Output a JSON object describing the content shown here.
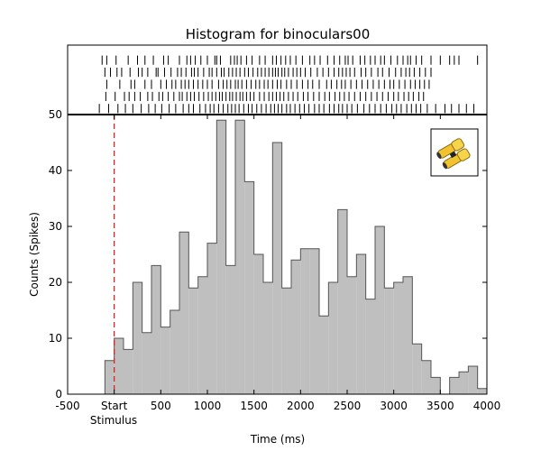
{
  "chart_data": {
    "type": "histogram",
    "title": "Histogram for binoculars00",
    "xlabel": "Time (ms)",
    "ylabel": "Counts (Spikes)",
    "xlim": [
      -500,
      4000
    ],
    "ylim": [
      0,
      50
    ],
    "x_ticks": [
      -500,
      0,
      500,
      1000,
      1500,
      2000,
      2500,
      3000,
      3500,
      4000
    ],
    "x_tick_labels": [
      "-500",
      "Start",
      "500",
      "1000",
      "1500",
      "2000",
      "2500",
      "3000",
      "3500",
      "4000"
    ],
    "x_tick_sublabel": "Stimulus",
    "y_ticks": [
      0,
      10,
      20,
      30,
      40,
      50
    ],
    "stimulus_onset": 0,
    "stimulus_line_color": "#d62728",
    "bar_fill_color": "#bfbfbf",
    "bar_edge_color": "#555555",
    "bin_width": 100,
    "bin_starts": [
      -100,
      0,
      100,
      200,
      300,
      400,
      500,
      600,
      700,
      800,
      900,
      1000,
      1100,
      1200,
      1300,
      1400,
      1500,
      1600,
      1700,
      1800,
      1900,
      2000,
      2100,
      2200,
      2300,
      2400,
      2500,
      2600,
      2700,
      2800,
      2900,
      3000,
      3100,
      3200,
      3300,
      3400,
      3500,
      3600,
      3700,
      3800,
      3900
    ],
    "counts": [
      6,
      10,
      8,
      20,
      11,
      23,
      12,
      15,
      29,
      19,
      21,
      27,
      49,
      23,
      49,
      38,
      25,
      20,
      45,
      19,
      24,
      26,
      26,
      14,
      20,
      33,
      21,
      25,
      17,
      30,
      19,
      20,
      21,
      9,
      6,
      3,
      0,
      3,
      4,
      5,
      1
    ],
    "raster": {
      "trials": 5,
      "spike_times_ms": [
        [
          -130,
          -80,
          20,
          150,
          250,
          330,
          420,
          530,
          580,
          700,
          780,
          820,
          870,
          930,
          1000,
          1080,
          1100,
          1140,
          1250,
          1290,
          1320,
          1360,
          1420,
          1480,
          1560,
          1620,
          1700,
          1740,
          1790,
          1840,
          1890,
          1950,
          2020,
          2100,
          2150,
          2210,
          2290,
          2360,
          2420,
          2480,
          2510,
          2560,
          2640,
          2690,
          2750,
          2800,
          2860,
          2900,
          2970,
          3040,
          3100,
          3150,
          3180,
          3240,
          3300,
          3400,
          3500,
          3600,
          3650,
          3700,
          3900
        ],
        [
          -100,
          -40,
          30,
          80,
          170,
          260,
          300,
          360,
          450,
          470,
          540,
          610,
          680,
          720,
          770,
          830,
          860,
          900,
          960,
          1020,
          1050,
          1100,
          1150,
          1180,
          1230,
          1270,
          1310,
          1350,
          1400,
          1440,
          1490,
          1540,
          1580,
          1620,
          1660,
          1700,
          1730,
          1760,
          1800,
          1830,
          1870,
          1920,
          1960,
          2000,
          2050,
          2110,
          2180,
          2240,
          2300,
          2360,
          2410,
          2450,
          2490,
          2530,
          2580,
          2650,
          2700,
          2760,
          2830,
          2880,
          2950,
          3020,
          3080,
          3130,
          3170,
          3220,
          3280,
          3340,
          3400
        ],
        [
          -80,
          60,
          180,
          220,
          330,
          400,
          500,
          560,
          620,
          660,
          720,
          760,
          800,
          850,
          900,
          950,
          1000,
          1050,
          1120,
          1170,
          1210,
          1250,
          1300,
          1330,
          1370,
          1420,
          1470,
          1520,
          1560,
          1610,
          1650,
          1700,
          1750,
          1790,
          1850,
          1900,
          1960,
          2020,
          2080,
          2130,
          2200,
          2280,
          2330,
          2390,
          2440,
          2480,
          2540,
          2600,
          2660,
          2720,
          2780,
          2840,
          2900,
          2960,
          3000,
          3060,
          3120,
          3180,
          3230,
          3280,
          3330,
          3380
        ],
        [
          -90,
          10,
          110,
          160,
          220,
          280,
          360,
          410,
          480,
          520,
          580,
          640,
          700,
          730,
          780,
          820,
          860,
          910,
          960,
          1010,
          1050,
          1090,
          1130,
          1160,
          1200,
          1240,
          1270,
          1310,
          1350,
          1380,
          1420,
          1460,
          1500,
          1560,
          1610,
          1660,
          1700,
          1740,
          1780,
          1820,
          1870,
          1920,
          1970,
          2030,
          2080,
          2140,
          2200,
          2260,
          2310,
          2370,
          2420,
          2470,
          2520,
          2580,
          2640,
          2700,
          2760,
          2820,
          2880,
          2940,
          3000,
          3050,
          3110,
          3160,
          3210,
          3270,
          3320
        ],
        [
          -160,
          -60,
          40,
          120,
          200,
          290,
          370,
          440,
          510,
          590,
          660,
          740,
          800,
          850,
          920,
          980,
          1030,
          1070,
          1120,
          1170,
          1220,
          1260,
          1300,
          1340,
          1390,
          1440,
          1480,
          1530,
          1580,
          1630,
          1680,
          1720,
          1760,
          1800,
          1850,
          1890,
          1940,
          1990,
          2040,
          2090,
          2150,
          2200,
          2250,
          2310,
          2360,
          2410,
          2450,
          2500,
          2550,
          2610,
          2680,
          2740,
          2800,
          2860,
          2920,
          2980,
          3030,
          3080,
          3140,
          3190,
          3240,
          3290,
          3360,
          3450,
          3550,
          3620,
          3700,
          3780,
          3860
        ]
      ]
    },
    "inset_icon": "binoculars-icon"
  }
}
